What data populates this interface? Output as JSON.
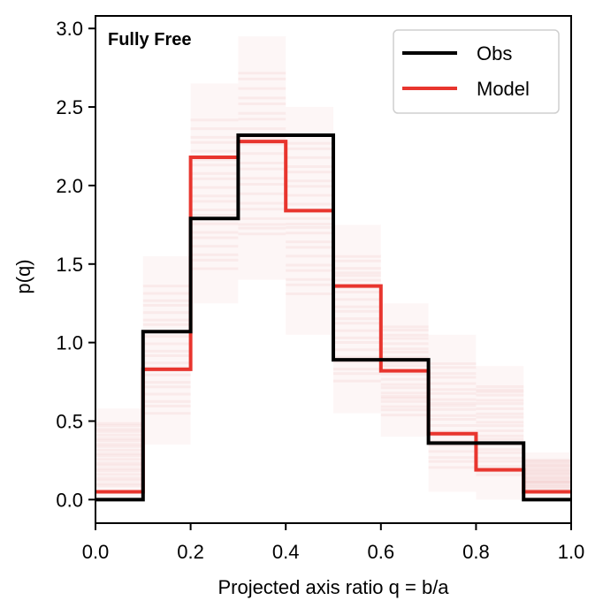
{
  "chart_data": {
    "type": "line",
    "style": "step histogram",
    "panel_label": "Fully Free",
    "xlabel": "Projected axis ratio q = b/a",
    "ylabel": "p(q)",
    "xlim": [
      0.0,
      1.0
    ],
    "ylim": [
      -0.15,
      3.08
    ],
    "xticks": [
      "0.0",
      "0.2",
      "0.4",
      "0.6",
      "0.8",
      "1.0"
    ],
    "yticks": [
      "0.0",
      "0.5",
      "1.0",
      "1.5",
      "2.0",
      "2.5",
      "3.0"
    ],
    "bin_edges": [
      0.0,
      0.1,
      0.2,
      0.3,
      0.4,
      0.5,
      0.6,
      0.7,
      0.8,
      0.9,
      1.0
    ],
    "series": [
      {
        "name": "Obs",
        "color": "#000000",
        "values": [
          0.0,
          1.07,
          1.79,
          2.32,
          2.32,
          0.89,
          0.89,
          0.36,
          0.36,
          0.0
        ]
      },
      {
        "name": "Model",
        "color": "#e8352e",
        "values": [
          0.05,
          0.83,
          2.18,
          2.28,
          1.84,
          1.36,
          0.82,
          0.42,
          0.19,
          0.05
        ]
      }
    ],
    "model_draws": {
      "color": "#d9534f",
      "ranges_per_bin": [
        [
          0.0,
          0.58
        ],
        [
          0.35,
          1.55
        ],
        [
          1.25,
          2.65
        ],
        [
          1.4,
          2.95
        ],
        [
          1.05,
          2.5
        ],
        [
          0.55,
          1.75
        ],
        [
          0.4,
          1.25
        ],
        [
          0.05,
          1.05
        ],
        [
          0.0,
          0.85
        ],
        [
          0.0,
          0.3
        ]
      ]
    },
    "legend_position": "upper right",
    "grid": false
  }
}
